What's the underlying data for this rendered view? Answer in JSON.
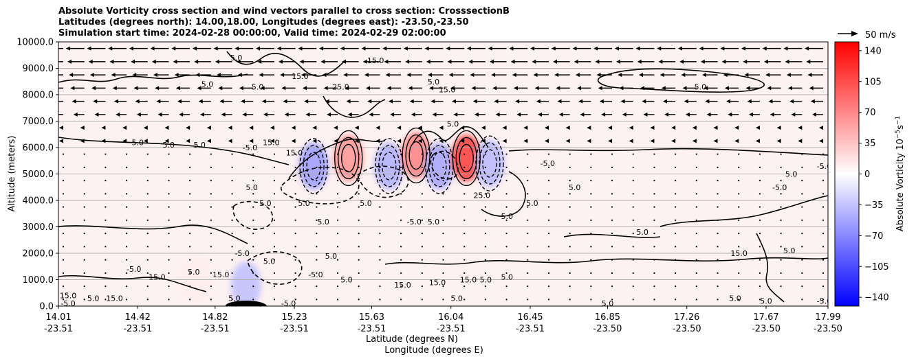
{
  "title": {
    "line1": "Absolute Vorticity cross section and wind vectors parallel to cross section: CrosssectionB",
    "line2": "Latitudes (degrees north): 14.00,18.00, Longitudes (degrees east): -23.50,-23.50",
    "line3": "Simulation start time: 2024-02-28 00:00:00, Valid time: 2024-02-29 02:00:00"
  },
  "chart_data": {
    "type": "heatmap",
    "xlabel": "Latitude (degrees N)",
    "xlabel2": "Longitude (degrees E)",
    "ylabel": "Altitude (meters)",
    "xlim": [
      14.01,
      17.99
    ],
    "ylim": [
      0,
      10000
    ],
    "x_ticks": [
      {
        "lat": "14.01",
        "lon": "-23.51",
        "value": 14.01
      },
      {
        "lat": "14.42",
        "lon": "-23.51",
        "value": 14.42
      },
      {
        "lat": "14.82",
        "lon": "-23.51",
        "value": 14.82
      },
      {
        "lat": "15.23",
        "lon": "-23.51",
        "value": 15.23
      },
      {
        "lat": "15.63",
        "lon": "-23.51",
        "value": 15.63
      },
      {
        "lat": "16.04",
        "lon": "-23.51",
        "value": 16.04
      },
      {
        "lat": "16.45",
        "lon": "-23.51",
        "value": 16.45
      },
      {
        "lat": "16.85",
        "lon": "-23.50",
        "value": 16.85
      },
      {
        "lat": "17.26",
        "lon": "-23.50",
        "value": 17.26
      },
      {
        "lat": "17.67",
        "lon": "-23.50",
        "value": 17.67
      },
      {
        "lat": "17.99",
        "lon": "-23.50",
        "value": 17.99
      }
    ],
    "y_ticks": [
      {
        "label": "0.0",
        "value": 0
      },
      {
        "label": "1000.0",
        "value": 1000
      },
      {
        "label": "2000.0",
        "value": 2000
      },
      {
        "label": "3000.0",
        "value": 3000
      },
      {
        "label": "4000.0",
        "value": 4000
      },
      {
        "label": "5000.0",
        "value": 5000
      },
      {
        "label": "6000.0",
        "value": 6000
      },
      {
        "label": "7000.0",
        "value": 7000
      },
      {
        "label": "8000.0",
        "value": 8000
      },
      {
        "label": "9000.0",
        "value": 9000
      },
      {
        "label": "10000.0",
        "value": 10000
      }
    ],
    "grid": "horizontal",
    "colorbar": {
      "label": "Absolute Vorticity 10",
      "label_exp": "−5",
      "label_unit": "s",
      "label_unit_exp": "−1",
      "range": [
        -150,
        150
      ],
      "ticks": [
        "140",
        "105",
        "70",
        "35",
        "0",
        "−35",
        "−70",
        "−105",
        "−140"
      ],
      "tick_values": [
        140,
        105,
        70,
        35,
        0,
        -35,
        -70,
        -105,
        -140
      ],
      "cmap": [
        "#0000ff",
        "#ffffff",
        "#ff0000"
      ]
    },
    "quiver_key": {
      "label": "50 m/s",
      "value": 50
    },
    "vorticity_centers": [
      {
        "lat": 15.33,
        "alt": 5300,
        "value": -55
      },
      {
        "lat": 15.51,
        "alt": 5600,
        "value": 60
      },
      {
        "lat": 15.72,
        "alt": 5300,
        "value": -45
      },
      {
        "lat": 15.86,
        "alt": 5700,
        "value": 70
      },
      {
        "lat": 15.98,
        "alt": 5300,
        "value": -50
      },
      {
        "lat": 16.12,
        "alt": 5600,
        "value": 110
      },
      {
        "lat": 16.24,
        "alt": 5400,
        "value": -40
      },
      {
        "lat": 14.98,
        "alt": 800,
        "value": -35
      },
      {
        "lat": 14.72,
        "alt": 1000,
        "value": 10
      }
    ],
    "contour_labels": [
      {
        "text": "5.0",
        "lat": 14.93,
        "alt": 9400
      },
      {
        "text": "15.0",
        "lat": 15.65,
        "alt": 9300
      },
      {
        "text": "15.0",
        "lat": 15.26,
        "alt": 8700
      },
      {
        "text": "5.0",
        "lat": 14.78,
        "alt": 8400
      },
      {
        "text": "5.0",
        "lat": 15.04,
        "alt": 8300
      },
      {
        "text": "25.0",
        "lat": 15.47,
        "alt": 8300
      },
      {
        "text": "5.0",
        "lat": 15.95,
        "alt": 8500
      },
      {
        "text": "15.0",
        "lat": 16.02,
        "alt": 8200
      },
      {
        "text": "5.0",
        "lat": 17.33,
        "alt": 8300
      },
      {
        "text": "5.0",
        "lat": 16.05,
        "alt": 6900
      },
      {
        "text": "5.0",
        "lat": 14.42,
        "alt": 6200
      },
      {
        "text": "5.0",
        "lat": 14.58,
        "alt": 6100
      },
      {
        "text": "5.0",
        "lat": 14.74,
        "alt": 6100
      },
      {
        "text": "15.0",
        "lat": 15.11,
        "alt": 6200
      },
      {
        "text": "-5.0",
        "lat": 15.0,
        "alt": 6000
      },
      {
        "text": "15.0",
        "lat": 15.23,
        "alt": 5800
      },
      {
        "text": "-5.0",
        "lat": 16.54,
        "alt": 5400
      },
      {
        "text": "5.0",
        "lat": 17.8,
        "alt": 5000
      },
      {
        "text": "-5.0",
        "lat": 17.97,
        "alt": 5300
      },
      {
        "text": "5.0",
        "lat": 16.68,
        "alt": 4500
      },
      {
        "text": "-5.0",
        "lat": 17.74,
        "alt": 4500
      },
      {
        "text": "5.0",
        "lat": 15.01,
        "alt": 4500
      },
      {
        "text": "5.0",
        "lat": 15.08,
        "alt": 3900
      },
      {
        "text": "5.0",
        "lat": 15.28,
        "alt": 3900
      },
      {
        "text": "5.0",
        "lat": 15.6,
        "alt": 3900
      },
      {
        "text": "5.0",
        "lat": 16.46,
        "alt": 3900
      },
      {
        "text": "25.0",
        "lat": 16.2,
        "alt": 4200
      },
      {
        "text": "-5.0",
        "lat": 15.85,
        "alt": 3200
      },
      {
        "text": "5.0",
        "lat": 15.38,
        "alt": 3200
      },
      {
        "text": "5.0",
        "lat": 15.95,
        "alt": 3200
      },
      {
        "text": "5.0",
        "lat": 16.33,
        "alt": 3400
      },
      {
        "text": "5.0",
        "lat": 17.03,
        "alt": 2800
      },
      {
        "text": "15.0",
        "lat": 17.53,
        "alt": 2000
      },
      {
        "text": "5.0",
        "lat": 17.79,
        "alt": 2100
      },
      {
        "text": "5.0",
        "lat": 15.42,
        "alt": 1900
      },
      {
        "text": "-5.0",
        "lat": 14.96,
        "alt": 2000
      },
      {
        "text": "5.0",
        "lat": 15.1,
        "alt": 1700
      },
      {
        "text": "-5.0",
        "lat": 14.4,
        "alt": 1400
      },
      {
        "text": "5.0",
        "lat": 14.71,
        "alt": 1300
      },
      {
        "text": "15.0",
        "lat": 14.85,
        "alt": 1200
      },
      {
        "text": "15.0",
        "lat": 14.52,
        "alt": 1100
      },
      {
        "text": "5.0",
        "lat": 15.5,
        "alt": 1000
      },
      {
        "text": "-5.0",
        "lat": 15.34,
        "alt": 1200
      },
      {
        "text": "15.0",
        "lat": 15.79,
        "alt": 800
      },
      {
        "text": "15.0",
        "lat": 15.97,
        "alt": 900
      },
      {
        "text": "15.0",
        "lat": 16.13,
        "alt": 1000
      },
      {
        "text": "5.0",
        "lat": 16.22,
        "alt": 1000
      },
      {
        "text": "5.0",
        "lat": 16.33,
        "alt": 1100
      },
      {
        "text": "5.0",
        "lat": 16.07,
        "alt": 300
      },
      {
        "text": "5.0",
        "lat": 16.85,
        "alt": 100
      },
      {
        "text": "5.0",
        "lat": 17.51,
        "alt": 300
      },
      {
        "text": "5.0",
        "lat": 17.67,
        "alt": 200
      },
      {
        "text": "-5.0",
        "lat": 17.97,
        "alt": 200
      },
      {
        "text": "15.0",
        "lat": 14.06,
        "alt": 400
      },
      {
        "text": "-5.0",
        "lat": 14.06,
        "alt": 100
      },
      {
        "text": "15.0",
        "lat": 14.3,
        "alt": 300
      },
      {
        "text": "5.0",
        "lat": 14.19,
        "alt": 300
      },
      {
        "text": "5.0",
        "lat": 14.92,
        "alt": 300
      },
      {
        "text": "-5.0",
        "lat": 15.2,
        "alt": 100
      }
    ]
  }
}
